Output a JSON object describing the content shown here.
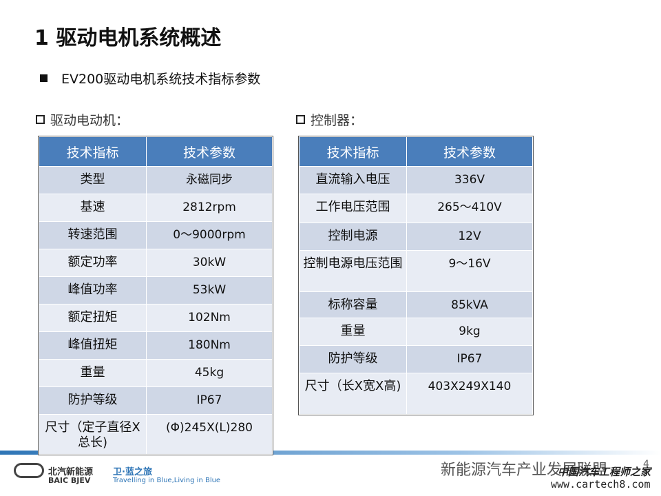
{
  "header": {
    "title": "1  驱动电机系统概述",
    "bullet": "EV200驱动电机系统技术指标参数"
  },
  "tables": [
    {
      "heading": "驱动电动机：",
      "columns": [
        "技术指标",
        "技术参数"
      ],
      "rows": [
        [
          "类型",
          "永磁同步"
        ],
        [
          "基速",
          "2812rpm"
        ],
        [
          "转速范围",
          "0～9000rpm"
        ],
        [
          "额定功率",
          "30kW"
        ],
        [
          "峰值功率",
          "53kW"
        ],
        [
          "额定扭矩",
          "102Nm"
        ],
        [
          "峰值扭矩",
          "180Nm"
        ],
        [
          "重量",
          "45kg"
        ],
        [
          "防护等级",
          "IP67"
        ],
        [
          "尺寸（定子直径X总长)",
          "(Φ)245X(L)280"
        ]
      ]
    },
    {
      "heading": "控制器：",
      "columns": [
        "技术指标",
        "技术参数"
      ],
      "rows": [
        [
          "直流输入电压",
          "336V"
        ],
        [
          "工作电压范围",
          "265～410V"
        ],
        [
          "控制电源",
          "12V"
        ],
        [
          "控制电源电压范围",
          "9～16V"
        ],
        [
          "标称容量",
          "85kVA"
        ],
        [
          "重量",
          "9kg"
        ],
        [
          "防护等级",
          "IP67"
        ],
        [
          "尺寸（长X宽X高)",
          "403X249X140"
        ]
      ]
    }
  ],
  "footer": {
    "brand_cn": "北汽新能源",
    "brand_en": "BAIC BJEV",
    "slogan_cn": "卫·蓝之旅",
    "slogan_en": "Travelling in Blue,Living in Blue",
    "watermark": "新能源汽车产业发展联盟",
    "site_cn": "中国汽车工程师之家",
    "site_url": "www.cartech8.com",
    "page": "4"
  }
}
